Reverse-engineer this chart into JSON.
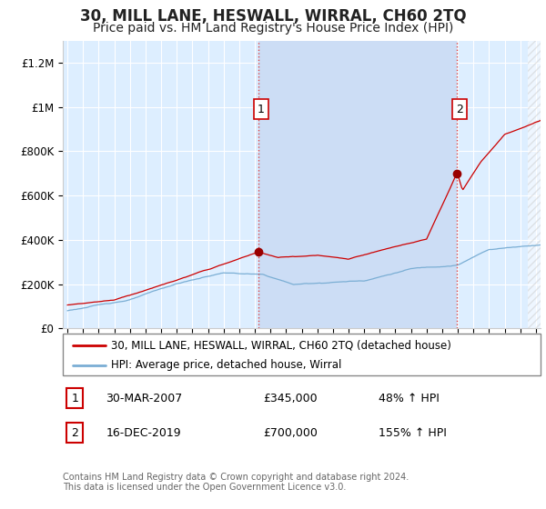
{
  "title": "30, MILL LANE, HESWALL, WIRRAL, CH60 2TQ",
  "subtitle": "Price paid vs. HM Land Registry's House Price Index (HPI)",
  "title_fontsize": 12,
  "subtitle_fontsize": 10,
  "ylim": [
    0,
    1300000
  ],
  "yticks": [
    0,
    200000,
    400000,
    600000,
    800000,
    1000000,
    1200000
  ],
  "ytick_labels": [
    "£0",
    "£200K",
    "£400K",
    "£600K",
    "£800K",
    "£1M",
    "£1.2M"
  ],
  "x_start_year": 1995,
  "x_end_year": 2025,
  "sale1_year": 2007.25,
  "sale1_value": 345000,
  "sale1_label": "1",
  "sale1_date": "30-MAR-2007",
  "sale1_pct": "48%",
  "sale2_year": 2019.96,
  "sale2_value": 700000,
  "sale2_label": "2",
  "sale2_date": "16-DEC-2019",
  "sale2_pct": "155%",
  "hpi_line_color": "#7aaed4",
  "price_line_color": "#cc0000",
  "sale_marker_color": "#990000",
  "dashed_line_color": "#dd4444",
  "background_color": "#ddeeff",
  "shade_color": "#ccddf5",
  "grid_color": "#ffffff",
  "legend_line1": "30, MILL LANE, HESWALL, WIRRAL, CH60 2TQ (detached house)",
  "legend_line2": "HPI: Average price, detached house, Wirral",
  "footnote": "Contains HM Land Registry data © Crown copyright and database right 2024.\nThis data is licensed under the Open Government Licence v3.0.",
  "table_row1": [
    "1",
    "30-MAR-2007",
    "£345,000",
    "48% ↑ HPI"
  ],
  "table_row2": [
    "2",
    "16-DEC-2019",
    "£700,000",
    "155% ↑ HPI"
  ]
}
